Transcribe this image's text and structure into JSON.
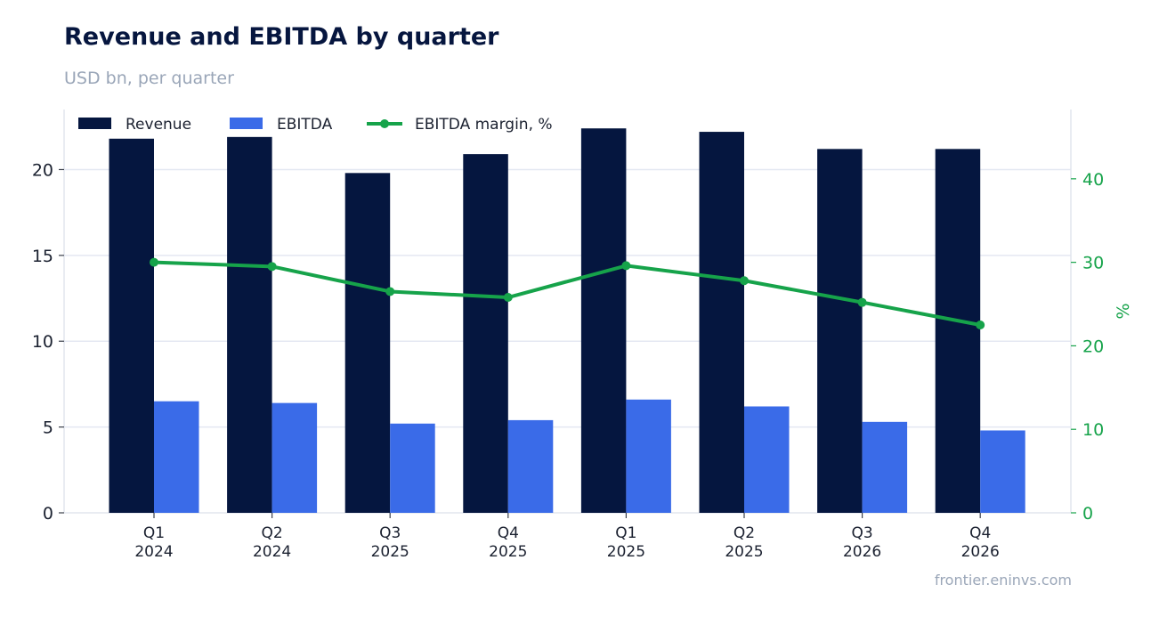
{
  "chart_data": {
    "type": "bar",
    "title": "Revenue and EBITDA by quarter",
    "subtitle": "USD bn, per quarter",
    "categories": [
      [
        "Q1",
        "2024"
      ],
      [
        "Q2",
        "2024"
      ],
      [
        "Q3",
        "2025"
      ],
      [
        "Q4",
        "2025"
      ],
      [
        "Q1",
        "2025"
      ],
      [
        "Q2",
        "2025"
      ],
      [
        "Q3",
        "2026"
      ],
      [
        "Q4",
        "2026"
      ]
    ],
    "series": [
      {
        "name": "Revenue",
        "kind": "bar",
        "axis": "left",
        "color": "#05163f",
        "values": [
          21.8,
          21.9,
          19.8,
          20.9,
          22.4,
          22.2,
          21.2,
          21.2
        ]
      },
      {
        "name": "EBITDA",
        "kind": "bar",
        "axis": "left",
        "color": "#3a6be8",
        "values": [
          6.5,
          6.4,
          5.2,
          5.4,
          6.6,
          6.2,
          5.3,
          4.8
        ]
      },
      {
        "name": "EBITDA margin, %",
        "kind": "line",
        "axis": "right",
        "color": "#16a34a",
        "values": [
          30.0,
          29.5,
          26.5,
          25.8,
          29.6,
          27.8,
          25.2,
          22.5
        ]
      }
    ],
    "y_left": {
      "label": "",
      "ylim": [
        0,
        23.5
      ],
      "ticks": [
        0,
        5,
        10,
        15,
        20
      ]
    },
    "y_right": {
      "label": "%",
      "ylim": [
        0,
        48.3
      ],
      "ticks": [
        0,
        10,
        20,
        30,
        40
      ],
      "color": "#16a34a"
    },
    "grid": true,
    "legend": "top-left",
    "source": "frontier.eninvs.com"
  }
}
